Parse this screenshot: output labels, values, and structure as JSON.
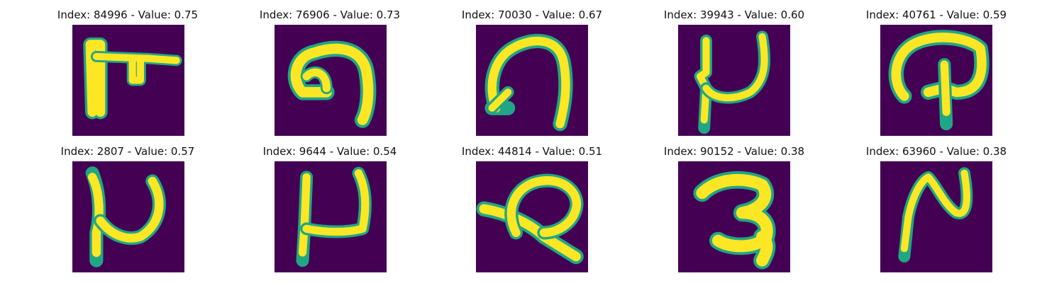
{
  "panels": [
    {
      "title": "Index: 84996 - Value: 0.75",
      "index": 84996,
      "value": 0.75,
      "glyph": "glyph-a"
    },
    {
      "title": "Index: 76906 - Value: 0.73",
      "index": 76906,
      "value": 0.73,
      "glyph": "glyph-b"
    },
    {
      "title": "Index: 70030 - Value: 0.67",
      "index": 70030,
      "value": 0.67,
      "glyph": "glyph-c"
    },
    {
      "title": "Index: 39943 - Value: 0.60",
      "index": 39943,
      "value": 0.6,
      "glyph": "glyph-d"
    },
    {
      "title": "Index: 40761 - Value: 0.59",
      "index": 40761,
      "value": 0.59,
      "glyph": "glyph-e"
    },
    {
      "title": "Index: 2807 - Value: 0.57",
      "index": 2807,
      "value": 0.57,
      "glyph": "glyph-f"
    },
    {
      "title": "Index: 9644 - Value: 0.54",
      "index": 9644,
      "value": 0.54,
      "glyph": "glyph-g"
    },
    {
      "title": "Index: 44814 - Value: 0.51",
      "index": 44814,
      "value": 0.51,
      "glyph": "glyph-h"
    },
    {
      "title": "Index: 90152 - Value: 0.38",
      "index": 90152,
      "value": 0.38,
      "glyph": "glyph-i"
    },
    {
      "title": "Index: 63960 - Value: 0.38",
      "index": 63960,
      "value": 0.38,
      "glyph": "glyph-j"
    }
  ],
  "colors": {
    "background": "#440154",
    "stroke_outer": "#21a685",
    "stroke_inner": "#fde725"
  }
}
